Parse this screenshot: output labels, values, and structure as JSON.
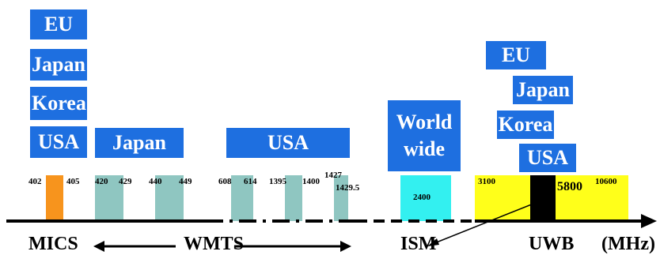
{
  "region_labels": {
    "mics_stack": [
      "EU",
      "Japan",
      "Korea",
      "USA"
    ],
    "wmts_japan": "Japan",
    "wmts_usa": "USA",
    "ism": [
      "World",
      "wide"
    ],
    "uwb_eu": "EU",
    "uwb_japan": "Japan",
    "uwb_korea": "Korea",
    "uwb_usa": "USA"
  },
  "frequencies": {
    "mics": [
      "402",
      "405"
    ],
    "wmts_japan": [
      "420",
      "429",
      "440",
      "449"
    ],
    "wmts_usa": [
      "608",
      "614",
      "1395",
      "1400",
      "1427",
      "1429.5"
    ],
    "ism": "2400",
    "uwb": [
      "3100",
      "5800",
      "10600"
    ]
  },
  "bands": {
    "MICS": "MICS",
    "WMTS": "WMTS",
    "ISM": "ISM",
    "UWB": "UWB",
    "unit": "(MHz)"
  },
  "colors": {
    "region_box": "#1e6fe0",
    "mics_band": "#f7941d",
    "wmts_band": "#8fc6c1",
    "ism_band": "#33f0f0",
    "uwb_band": "#ffff1a",
    "uwb_center": "#000000"
  }
}
